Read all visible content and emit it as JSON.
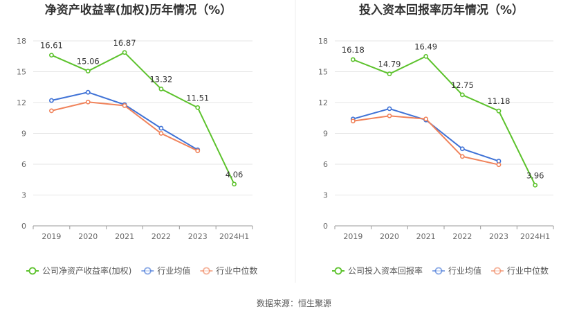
{
  "source_prefix": "数据来源：",
  "source_name": "恒生聚源",
  "colors": {
    "company": "#5cc22c",
    "industry_avg": "#3f72d6",
    "industry_median": "#f0825a",
    "grid": "#e5e5e5",
    "axis": "#999999",
    "divider": "#eeeeee"
  },
  "chart_data": [
    {
      "type": "line",
      "title": "净资产收益率(加权)历年情况（%）",
      "categories": [
        "2019",
        "2020",
        "2021",
        "2022",
        "2023",
        "2024H1"
      ],
      "ylim": [
        0,
        18
      ],
      "yticks": [
        0,
        3,
        6,
        9,
        12,
        15,
        18
      ],
      "grid": true,
      "legend_position": "bottom",
      "series": [
        {
          "name": "公司净资产收益率(加权)",
          "color_key": "company",
          "values": [
            16.61,
            15.06,
            16.87,
            13.32,
            11.51,
            4.06
          ],
          "labels": [
            "16.61",
            "15.06",
            "16.87",
            "13.32",
            "11.51",
            "4.06"
          ]
        },
        {
          "name": "行业均值",
          "color_key": "industry_avg",
          "values": [
            12.2,
            13.0,
            11.8,
            9.5,
            7.4,
            null
          ]
        },
        {
          "name": "行业中位数",
          "color_key": "industry_median",
          "values": [
            11.2,
            12.05,
            11.7,
            9.0,
            7.3,
            null
          ]
        }
      ]
    },
    {
      "type": "line",
      "title": "投入资本回报率历年情况（%）",
      "categories": [
        "2019",
        "2020",
        "2021",
        "2022",
        "2023",
        "2024H1"
      ],
      "ylim": [
        0,
        18
      ],
      "yticks": [
        0,
        3,
        6,
        9,
        12,
        15,
        18
      ],
      "grid": true,
      "legend_position": "bottom",
      "series": [
        {
          "name": "公司投入资本回报率",
          "color_key": "company",
          "values": [
            16.18,
            14.79,
            16.49,
            12.75,
            11.18,
            3.96
          ],
          "labels": [
            "16.18",
            "14.79",
            "16.49",
            "12.75",
            "11.18",
            "3.96"
          ]
        },
        {
          "name": "行业均值",
          "color_key": "industry_avg",
          "values": [
            10.4,
            11.4,
            10.3,
            7.5,
            6.3,
            null
          ]
        },
        {
          "name": "行业中位数",
          "color_key": "industry_median",
          "values": [
            10.2,
            10.7,
            10.4,
            6.75,
            5.95,
            null
          ]
        }
      ]
    }
  ]
}
